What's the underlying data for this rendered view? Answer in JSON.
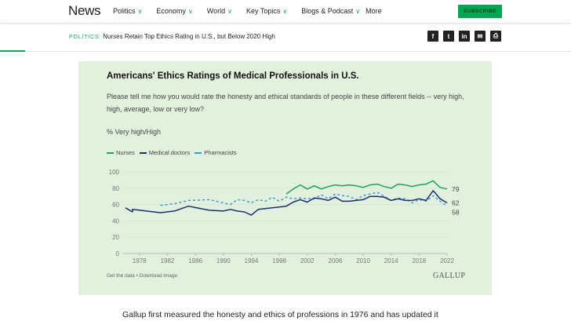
{
  "header": {
    "logo": "News",
    "nav": [
      "Politics",
      "Economy",
      "World",
      "Key Topics",
      "Blogs & Podcast",
      "More"
    ],
    "subscribe": "SUBSCRIBE",
    "accent": "#00a650"
  },
  "subheader": {
    "section": "POLITICS:",
    "headline": "Nurses Retain Top Ethics Rating in U.S., but Below 2020 High",
    "share": [
      "facebook-icon",
      "twitter-icon",
      "linkedin-icon",
      "email-icon",
      "print-icon"
    ]
  },
  "chart": {
    "footer": "Get the data • Download image",
    "brand": "GALLUP",
    "background": "#e2f0de"
  },
  "chart_data": {
    "type": "line",
    "title": "Americans' Ethics Ratings of Medical Professionals in U.S.",
    "subtitle": "Please tell me how you would rate the honesty and ethical standards of people in these different fields -- very high, high, average, low or very low?",
    "ylabel": "% Very high/High",
    "ylim": [
      0,
      100
    ],
    "yticks": [
      0,
      20,
      40,
      60,
      80,
      100
    ],
    "xticks": [
      1978,
      1982,
      1986,
      1990,
      1994,
      1998,
      2002,
      2006,
      2010,
      2014,
      2018,
      2022
    ],
    "xlim": [
      1976,
      2022
    ],
    "grid": true,
    "legend": "top-left",
    "series": [
      {
        "name": "Nurses",
        "color": "#1aa35a",
        "dash": false,
        "end_label": "79",
        "x": [
          1999,
          2000,
          2001,
          2002,
          2003,
          2004,
          2005,
          2006,
          2007,
          2008,
          2009,
          2010,
          2011,
          2012,
          2013,
          2014,
          2015,
          2016,
          2017,
          2018,
          2019,
          2020,
          2021,
          2022
        ],
        "y": [
          73,
          79,
          84,
          79,
          83,
          79,
          82,
          84,
          83,
          84,
          83,
          81,
          84,
          85,
          82,
          80,
          85,
          84,
          82,
          84,
          85,
          89,
          81,
          79
        ]
      },
      {
        "name": "Medical doctors",
        "color": "#1b2f6e",
        "dash": false,
        "end_label": "62",
        "x": [
          1976,
          1977,
          1977,
          1981,
          1983,
          1985,
          1988,
          1990,
          1991,
          1992,
          1993,
          1994,
          1995,
          1997,
          1999,
          2000,
          2001,
          2002,
          2003,
          2004,
          2005,
          2006,
          2007,
          2008,
          2009,
          2010,
          2011,
          2012,
          2013,
          2014,
          2015,
          2016,
          2017,
          2018,
          2019,
          2020,
          2021,
          2022
        ],
        "y": [
          56,
          51,
          54,
          50,
          52,
          58,
          53,
          52,
          54,
          52,
          51,
          47,
          54,
          56,
          58,
          63,
          66,
          63,
          68,
          67,
          65,
          69,
          64,
          64,
          65,
          66,
          70,
          70,
          69,
          65,
          67,
          65,
          65,
          67,
          65,
          77,
          67,
          62
        ]
      },
      {
        "name": "Pharmacists",
        "color": "#3a9ad9",
        "dash": true,
        "end_label": "58",
        "x": [
          1981,
          1983,
          1985,
          1988,
          1990,
          1991,
          1992,
          1993,
          1994,
          1995,
          1996,
          1997,
          1998,
          1999,
          2000,
          2001,
          2002,
          2003,
          2004,
          2005,
          2006,
          2007,
          2008,
          2009,
          2010,
          2011,
          2012,
          2013,
          2014,
          2015,
          2016,
          2017,
          2018,
          2019,
          2020,
          2021,
          2022
        ],
        "y": [
          59,
          61,
          65,
          66,
          62,
          60,
          66,
          65,
          62,
          66,
          64,
          69,
          64,
          69,
          67,
          68,
          67,
          67,
          72,
          67,
          73,
          71,
          70,
          66,
          71,
          73,
          75,
          70,
          65,
          68,
          67,
          62,
          66,
          64,
          71,
          64,
          58
        ]
      }
    ]
  },
  "article": {
    "first_line": "Gallup first measured the honesty and ethics of professions in 1976 and has updated it"
  }
}
